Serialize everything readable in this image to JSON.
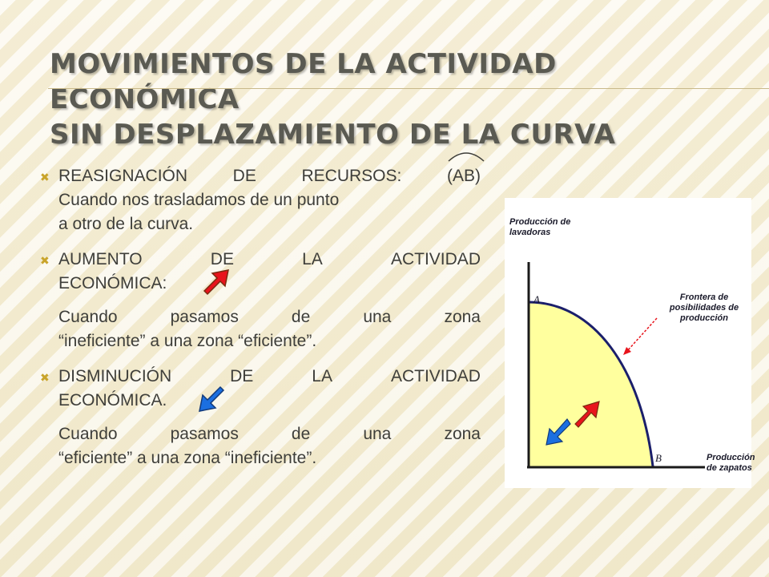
{
  "slide": {
    "title_line1": "MOVIMIENTOS DE LA ACTIVIDAD ECONÓMICA",
    "title_line2": "SIN DESPLAZAMIENTO DE LA CURVA"
  },
  "bullets": [
    {
      "line1_words": [
        "REASIGNACIÓN",
        "DE",
        "RECURSOS:",
        "(AB)"
      ],
      "line2": "Cuando nos trasladamos de un punto",
      "line3": "a otro de la curva."
    },
    {
      "line1_words": [
        "AUMENTO",
        "DE",
        "LA",
        "ACTIVIDAD"
      ],
      "line2": "ECONÓMICA:",
      "sub_line1_words": [
        "Cuando",
        "pasamos",
        "de",
        "una",
        "zona"
      ],
      "sub_line2": "“ineficiente” a una zona “eficiente”."
    },
    {
      "line1_words": [
        "DISMINUCIÓN",
        "DE",
        "LA",
        "ACTIVIDAD"
      ],
      "line2": "ECONÓMICA.",
      "sub_line1_words": [
        "Cuando",
        "pasamos",
        "de",
        "una",
        "zona"
      ],
      "sub_line2": "“eficiente” a una zona “ineficiente”."
    }
  ],
  "figure": {
    "y_axis_label_line1": "Producción de",
    "y_axis_label_line2": "lavadoras",
    "x_axis_label_line1": "Producción",
    "x_axis_label_line2": "de zapatos",
    "point_a": "A",
    "point_b": "B",
    "curve_label_line1": "Frontera de",
    "curve_label_line2": "posibilidades de",
    "curve_label_line3": "producción"
  },
  "colors": {
    "bullet_marker": "#c9a42a",
    "area_fill": "#ffff9e",
    "curve": "#1b1f6b",
    "up_arrow": "#e8141c",
    "down_arrow": "#1b6fe0",
    "label_arrow": "#e8141c"
  },
  "icons": {
    "bullet": "x-mark-icon",
    "increase": "red-arrow-up-right-icon",
    "decrease": "blue-arrow-down-left-icon"
  }
}
